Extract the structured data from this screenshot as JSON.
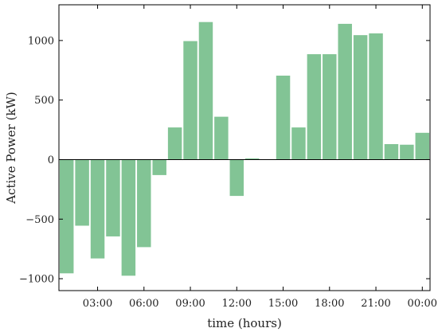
{
  "chart_data": {
    "type": "bar",
    "xlabel": "time (hours)",
    "ylabel": "Active Power (kW)",
    "ylim": [
      -1100,
      1300
    ],
    "xlim": [
      0.5,
      24.5
    ],
    "grid": false,
    "bar_color": "#82c495",
    "categories": [
      1,
      2,
      3,
      4,
      5,
      6,
      7,
      8,
      9,
      10,
      11,
      12,
      13,
      14,
      15,
      16,
      17,
      18,
      19,
      20,
      21,
      22,
      23,
      24
    ],
    "values": [
      -955,
      -555,
      -830,
      -645,
      -975,
      -735,
      -130,
      270,
      995,
      1155,
      360,
      -305,
      10,
      0,
      705,
      270,
      885,
      885,
      1140,
      1045,
      1060,
      130,
      125,
      225
    ],
    "x_ticks": [
      {
        "pos": 3,
        "label": "03:00"
      },
      {
        "pos": 6,
        "label": "06:00"
      },
      {
        "pos": 9,
        "label": "09:00"
      },
      {
        "pos": 12,
        "label": "12:00"
      },
      {
        "pos": 15,
        "label": "15:00"
      },
      {
        "pos": 18,
        "label": "18:00"
      },
      {
        "pos": 21,
        "label": "21:00"
      },
      {
        "pos": 24,
        "label": "00:00"
      }
    ],
    "y_ticks": [
      {
        "value": -1000,
        "label": "−1000"
      },
      {
        "value": -500,
        "label": "−500"
      },
      {
        "value": 0,
        "label": "0"
      },
      {
        "value": 500,
        "label": "500"
      },
      {
        "value": 1000,
        "label": "1000"
      }
    ]
  }
}
